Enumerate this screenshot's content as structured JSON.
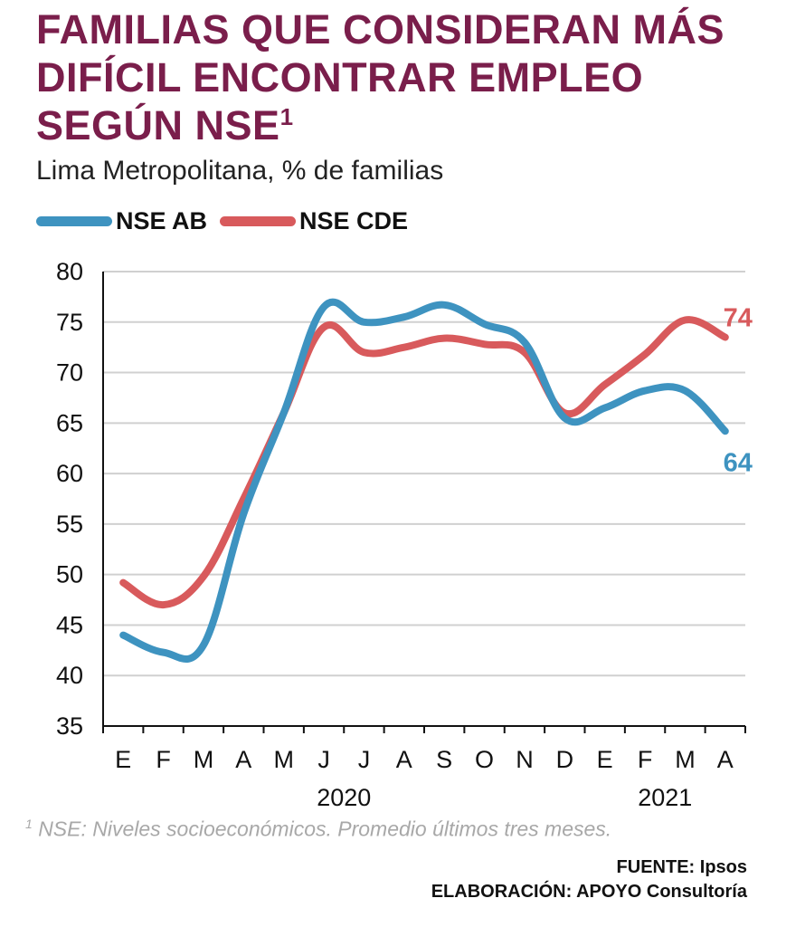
{
  "title": {
    "text": "FAMILIAS QUE CONSIDERAN MÁS DIFÍCIL ENCONTRAR EMPLEO SEGÚN NSE",
    "sup": "1"
  },
  "subtitle": "Lima Metropolitana, % de familias",
  "chart_data": {
    "type": "line",
    "categories": [
      "E",
      "F",
      "M",
      "A",
      "M",
      "J",
      "J",
      "A",
      "S",
      "O",
      "N",
      "D",
      "E",
      "F",
      "M",
      "A"
    ],
    "year_labels": [
      {
        "label": "2020",
        "category_index": 5.5
      },
      {
        "label": "2021",
        "category_index": 13.5
      }
    ],
    "ylim": [
      35,
      80
    ],
    "yticks": [
      35,
      40,
      45,
      50,
      55,
      60,
      65,
      70,
      75,
      80
    ],
    "grid": true,
    "legend_position": "top-left",
    "series": [
      {
        "name": "NSE AB",
        "color": "#3e93c0",
        "values": [
          44.0,
          42.3,
          43.0,
          56.0,
          66.0,
          76.5,
          75.0,
          75.5,
          76.7,
          74.8,
          73.0,
          65.5,
          66.5,
          68.2,
          68.2,
          64.2
        ],
        "end_label": "64",
        "end_label_position": "below"
      },
      {
        "name": "NSE CDE",
        "color": "#d85a5c",
        "values": [
          49.2,
          47.0,
          49.8,
          57.5,
          66.0,
          74.5,
          72.0,
          72.5,
          73.4,
          72.8,
          72.0,
          66.0,
          68.8,
          71.8,
          75.2,
          73.5
        ],
        "end_label": "74",
        "end_label_position": "above"
      }
    ]
  },
  "footnote": {
    "sup": "1",
    "text": "NSE: Niveles socioeconómicos. Promedio últimos tres meses."
  },
  "source": {
    "line1": "FUENTE: Ipsos",
    "line2": "ELABORACIÓN: APOYO Consultoría"
  }
}
